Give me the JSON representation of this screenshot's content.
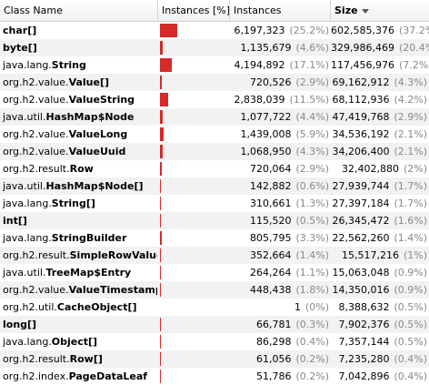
{
  "header": {
    "class_name": "Class Name",
    "instances_pct": "Instances [%]",
    "instances": "Instances",
    "size": "Size"
  },
  "colors": {
    "bar": "#d42a2a",
    "alt_row": "#f2f2f2"
  },
  "rows": [
    {
      "pkg": "",
      "cls": "char[]",
      "instances": "6,197,323",
      "inst_pct": "(25.2%)",
      "pct_value": 25.2,
      "size": "602,585,376",
      "size_pct": "(37.2%)"
    },
    {
      "pkg": "",
      "cls": "byte[]",
      "instances": "1,135,679",
      "inst_pct": "(4.6%)",
      "pct_value": 4.6,
      "size": "329,986,469",
      "size_pct": "(20.4%)"
    },
    {
      "pkg": "java.lang.",
      "cls": "String",
      "instances": "4,194,892",
      "inst_pct": "(17.1%)",
      "pct_value": 17.1,
      "size": "117,456,976",
      "size_pct": "(7.2%)"
    },
    {
      "pkg": "org.h2.value.",
      "cls": "Value[]",
      "instances": "720,526",
      "inst_pct": "(2.9%)",
      "pct_value": 2.9,
      "size": "69,162,912",
      "size_pct": "(4.3%)"
    },
    {
      "pkg": "org.h2.value.",
      "cls": "ValueString",
      "instances": "2,838,039",
      "inst_pct": "(11.5%)",
      "pct_value": 11.5,
      "size": "68,112,936",
      "size_pct": "(4.2%)"
    },
    {
      "pkg": "java.util.",
      "cls": "HashMap$Node",
      "instances": "1,077,722",
      "inst_pct": "(4.4%)",
      "pct_value": 4.4,
      "size": "47,419,768",
      "size_pct": "(2.9%)"
    },
    {
      "pkg": "org.h2.value.",
      "cls": "ValueLong",
      "instances": "1,439,008",
      "inst_pct": "(5.9%)",
      "pct_value": 5.9,
      "size": "34,536,192",
      "size_pct": "(2.1%)"
    },
    {
      "pkg": "org.h2.value.",
      "cls": "ValueUuid",
      "instances": "1,068,950",
      "inst_pct": "(4.3%)",
      "pct_value": 4.3,
      "size": "34,206,400",
      "size_pct": "(2.1%)"
    },
    {
      "pkg": "org.h2.result.",
      "cls": "Row",
      "instances": "720,064",
      "inst_pct": "(2.9%)",
      "pct_value": 2.9,
      "size": "32,402,880",
      "size_pct": "(2%)"
    },
    {
      "pkg": "java.util.",
      "cls": "HashMap$Node[]",
      "instances": "142,882",
      "inst_pct": "(0.6%)",
      "pct_value": 0.6,
      "size": "27,939,744",
      "size_pct": "(1.7%)"
    },
    {
      "pkg": "java.lang.",
      "cls": "String[]",
      "instances": "310,661",
      "inst_pct": "(1.3%)",
      "pct_value": 1.3,
      "size": "27,397,184",
      "size_pct": "(1.7%)"
    },
    {
      "pkg": "",
      "cls": "int[]",
      "instances": "115,520",
      "inst_pct": "(0.5%)",
      "pct_value": 0.5,
      "size": "26,345,472",
      "size_pct": "(1.6%)"
    },
    {
      "pkg": "java.lang.",
      "cls": "StringBuilder",
      "instances": "805,795",
      "inst_pct": "(3.3%)",
      "pct_value": 3.3,
      "size": "22,562,260",
      "size_pct": "(1.4%)"
    },
    {
      "pkg": "org.h2.result.",
      "cls": "SimpleRowValue",
      "instances": "352,664",
      "inst_pct": "(1.4%)",
      "pct_value": 1.4,
      "size": "15,517,216",
      "size_pct": "(1%)"
    },
    {
      "pkg": "java.util.",
      "cls": "TreeMap$Entry",
      "instances": "264,264",
      "inst_pct": "(1.1%)",
      "pct_value": 1.1,
      "size": "15,063,048",
      "size_pct": "(0.9%)"
    },
    {
      "pkg": "org.h2.value.",
      "cls": "ValueTimestamp",
      "instances": "448,438",
      "inst_pct": "(1.8%)",
      "pct_value": 1.8,
      "size": "14,350,016",
      "size_pct": "(0.9%)"
    },
    {
      "pkg": "org.h2.util.",
      "cls": "CacheObject[]",
      "instances": "1",
      "inst_pct": "(0%)",
      "pct_value": 0,
      "size": "8,388,632",
      "size_pct": "(0.5%)"
    },
    {
      "pkg": "",
      "cls": "long[]",
      "instances": "66,781",
      "inst_pct": "(0.3%)",
      "pct_value": 0.3,
      "size": "7,902,376",
      "size_pct": "(0.5%)"
    },
    {
      "pkg": "java.lang.",
      "cls": "Object[]",
      "instances": "86,298",
      "inst_pct": "(0.4%)",
      "pct_value": 0.4,
      "size": "7,357,144",
      "size_pct": "(0.5%)"
    },
    {
      "pkg": "org.h2.result.",
      "cls": "Row[]",
      "instances": "61,056",
      "inst_pct": "(0.2%)",
      "pct_value": 0.2,
      "size": "7,235,280",
      "size_pct": "(0.4%)"
    },
    {
      "pkg": "org.h2.index.",
      "cls": "PageDataLeaf",
      "instances": "51,786",
      "inst_pct": "(0.2%)",
      "pct_value": 0.2,
      "size": "7,042,896",
      "size_pct": "(0.4%)"
    }
  ]
}
